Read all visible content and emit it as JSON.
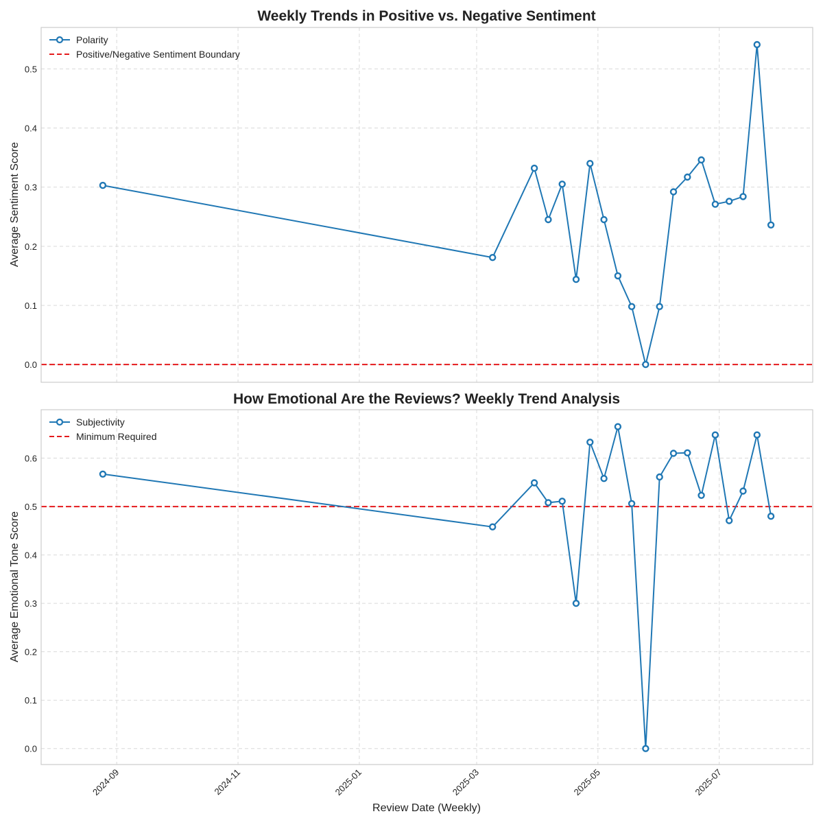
{
  "chart_data": [
    {
      "type": "line",
      "title": "Weekly Trends in Positive vs. Negative Sentiment",
      "xlabel": "",
      "ylabel": "Average Sentiment Score",
      "ylim": [
        -0.03,
        0.57
      ],
      "yticks": [
        "0.0",
        "0.1",
        "0.2",
        "0.3",
        "0.4",
        "0.5"
      ],
      "grid": true,
      "legend_position": "top-left",
      "x_tick_labels": [
        "2024-09",
        "2024-11",
        "2025-01",
        "2025-03",
        "2025-05",
        "2025-07"
      ],
      "series": [
        {
          "name": "Polarity",
          "color": "#1f77b4",
          "x": [
            "2024-08-25",
            "2025-03-09",
            "2025-03-30",
            "2025-04-06",
            "2025-04-13",
            "2025-04-20",
            "2025-04-27",
            "2025-05-04",
            "2025-05-11",
            "2025-05-18",
            "2025-05-25",
            "2025-06-01",
            "2025-06-08",
            "2025-06-15",
            "2025-06-22",
            "2025-06-29",
            "2025-07-06",
            "2025-07-13",
            "2025-07-20",
            "2025-07-27"
          ],
          "values": [
            0.303,
            0.181,
            0.332,
            0.245,
            0.305,
            0.144,
            0.34,
            0.245,
            0.15,
            0.098,
            0.0,
            0.098,
            0.292,
            0.317,
            0.346,
            0.271,
            0.276,
            0.284,
            0.541,
            0.236
          ]
        }
      ],
      "reference_line": {
        "name": "Positive/Negative Sentiment Boundary",
        "value": 0.0,
        "color": "#e41a1c",
        "style": "dashed"
      }
    },
    {
      "type": "line",
      "title": "How Emotional Are the Reviews? Weekly Trend Analysis",
      "xlabel": "Review Date (Weekly)",
      "ylabel": "Average Emotional Tone Score",
      "ylim": [
        -0.033,
        0.7
      ],
      "yticks": [
        "0.0",
        "0.1",
        "0.2",
        "0.3",
        "0.4",
        "0.5",
        "0.6"
      ],
      "grid": true,
      "legend_position": "top-left",
      "x_tick_labels": [
        "2024-09",
        "2024-11",
        "2025-01",
        "2025-03",
        "2025-05",
        "2025-07"
      ],
      "series": [
        {
          "name": "Subjectivity",
          "color": "#1f77b4",
          "x": [
            "2024-08-25",
            "2025-03-09",
            "2025-03-30",
            "2025-04-06",
            "2025-04-13",
            "2025-04-20",
            "2025-04-27",
            "2025-05-04",
            "2025-05-11",
            "2025-05-18",
            "2025-05-25",
            "2025-06-01",
            "2025-06-08",
            "2025-06-15",
            "2025-06-22",
            "2025-06-29",
            "2025-07-06",
            "2025-07-13",
            "2025-07-20",
            "2025-07-27"
          ],
          "values": [
            0.567,
            0.458,
            0.549,
            0.508,
            0.511,
            0.3,
            0.633,
            0.558,
            0.665,
            0.506,
            0.0,
            0.561,
            0.61,
            0.611,
            0.523,
            0.648,
            0.471,
            0.532,
            0.648,
            0.48
          ]
        }
      ],
      "reference_line": {
        "name": "Minimum Required",
        "value": 0.5,
        "color": "#e41a1c",
        "style": "dashed"
      }
    }
  ]
}
